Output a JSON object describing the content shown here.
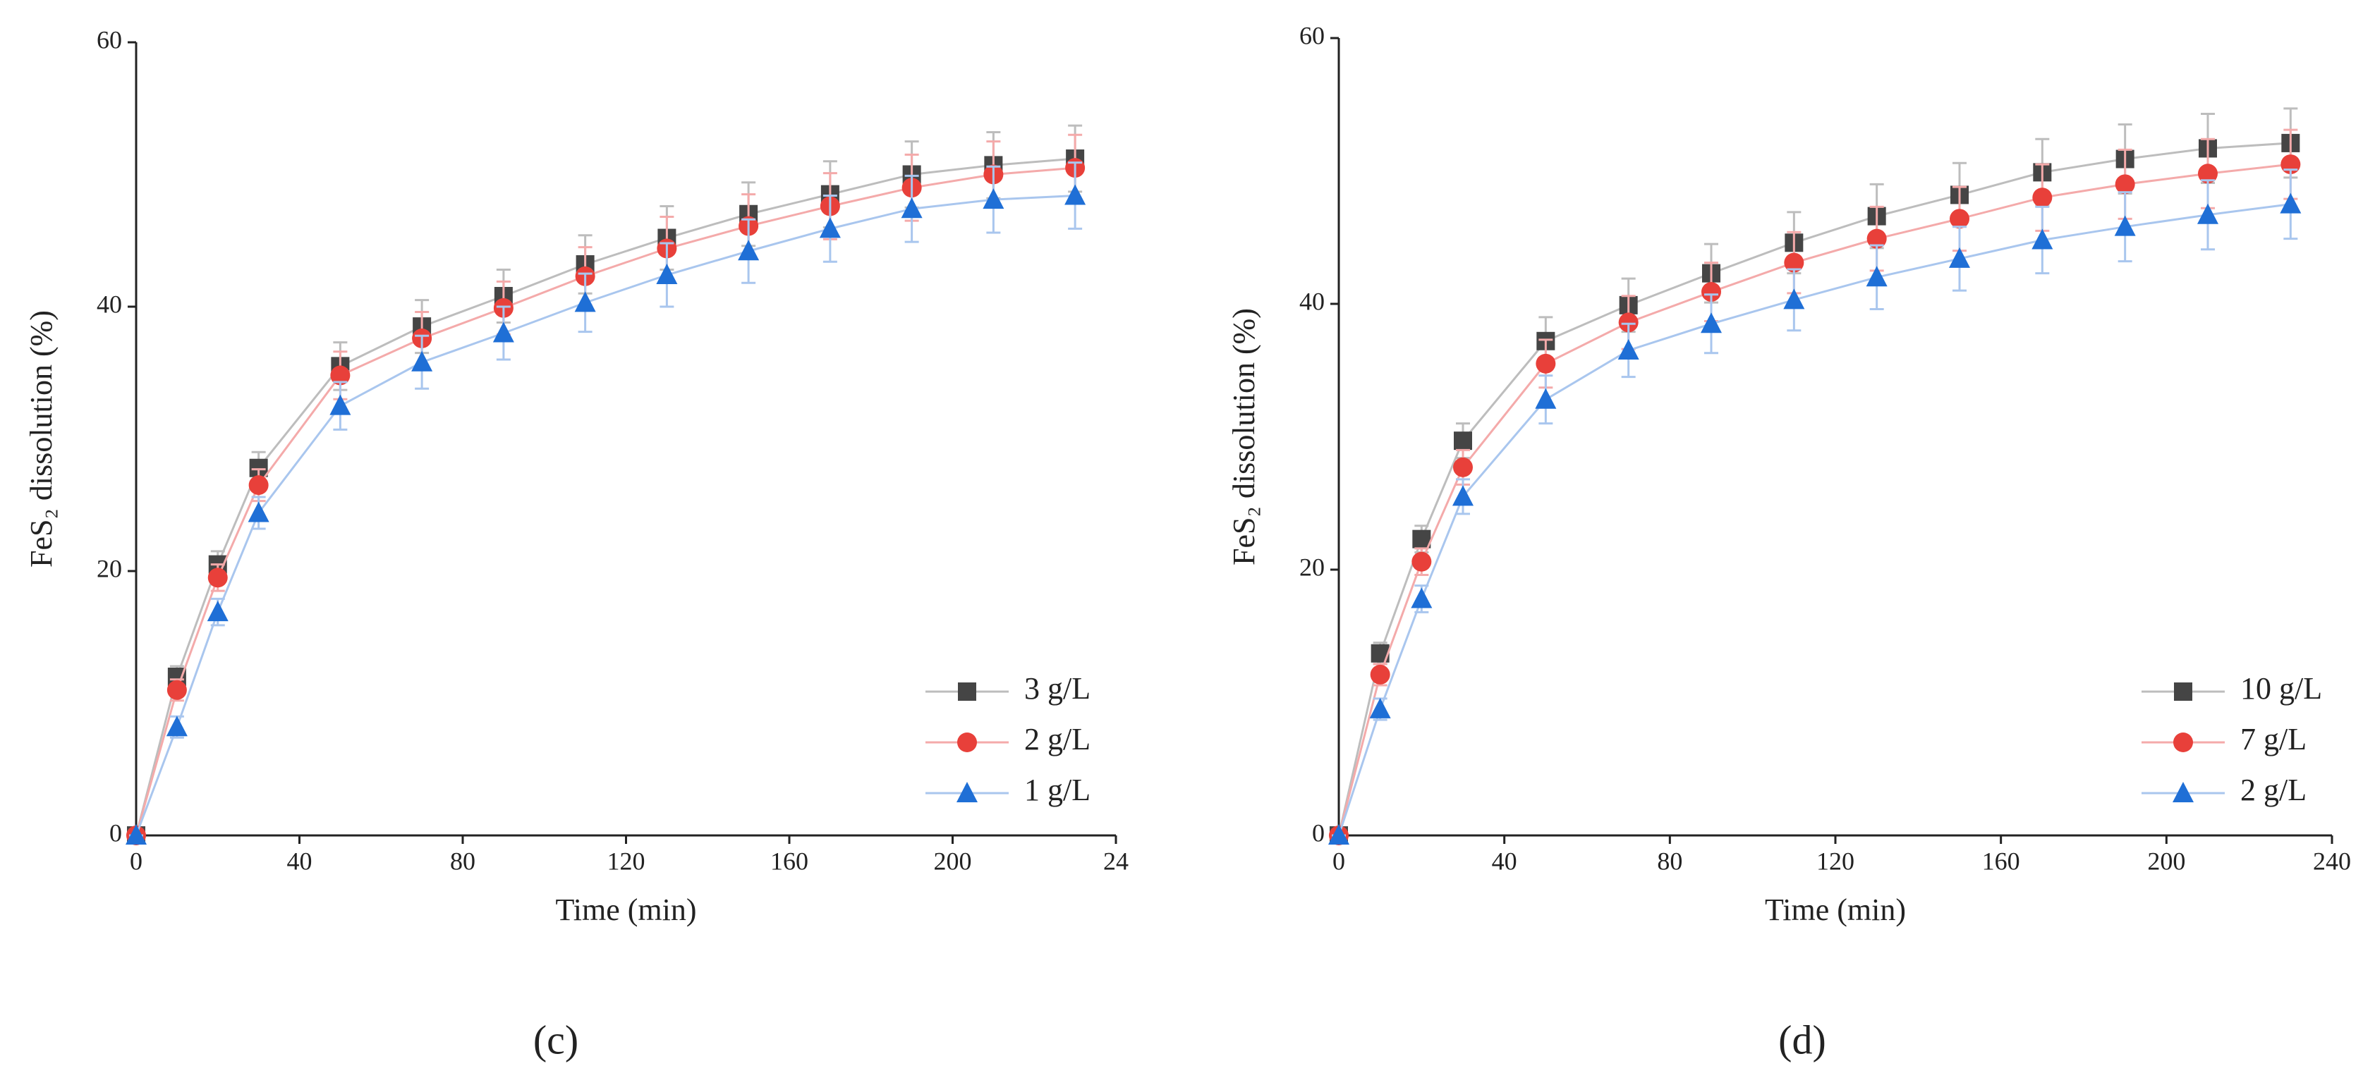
{
  "chart_data": [
    {
      "type": "line",
      "caption": "(c)",
      "xlabel": "Time (min)",
      "ylabel": "FeS₂ dissolution (%)",
      "xlim": [
        0,
        240
      ],
      "xticks": [
        0,
        40,
        80,
        120,
        160,
        200,
        {
          "value": 240,
          "label": "24"
        }
      ],
      "ylim": [
        0,
        60
      ],
      "yticks": [
        0,
        20,
        40,
        60
      ],
      "legend": "lower right",
      "x": [
        0,
        10,
        20,
        30,
        50,
        70,
        90,
        110,
        130,
        150,
        170,
        190,
        210,
        230
      ],
      "series": [
        {
          "name": "3 g/L",
          "marker": "square",
          "color": "#454545",
          "line_color": "#bdbdbd",
          "values": [
            0,
            12,
            20.5,
            27.8,
            35.5,
            38.5,
            40.8,
            43.2,
            45.2,
            47,
            48.5,
            50,
            50.7,
            51.2
          ],
          "errors": [
            0,
            0.8,
            1,
            1.2,
            1.8,
            2,
            2,
            2.2,
            2.4,
            2.4,
            2.5,
            2.5,
            2.5,
            2.5
          ]
        },
        {
          "name": "2 g/L",
          "marker": "circle",
          "color": "#e8403a",
          "line_color": "#f4aaaa",
          "values": [
            0,
            11,
            19.5,
            26.5,
            34.8,
            37.6,
            39.9,
            42.3,
            44.4,
            46.1,
            47.6,
            49,
            50,
            50.5
          ],
          "errors": [
            0,
            0.8,
            1,
            1.2,
            1.8,
            2,
            2,
            2.2,
            2.4,
            2.4,
            2.5,
            2.5,
            2.5,
            2.5
          ]
        },
        {
          "name": "1 g/L",
          "marker": "triangle",
          "color": "#1f6fd6",
          "line_color": "#a9c6ee",
          "values": [
            0,
            8.2,
            16.9,
            24.4,
            32.5,
            35.8,
            38,
            40.3,
            42.4,
            44.2,
            45.9,
            47.4,
            48.1,
            48.4
          ],
          "errors": [
            0,
            0.8,
            1,
            1.2,
            1.8,
            2,
            2,
            2.2,
            2.4,
            2.4,
            2.5,
            2.5,
            2.5,
            2.5
          ]
        }
      ]
    },
    {
      "type": "line",
      "caption": "(d)",
      "xlabel": "Time (min)",
      "ylabel": "FeS₂ dissolution (%)",
      "xlim": [
        0,
        240
      ],
      "xticks": [
        0,
        40,
        80,
        120,
        160,
        200,
        240
      ],
      "ylim": [
        0,
        60
      ],
      "yticks": [
        0,
        20,
        40,
        60
      ],
      "legend": "lower right",
      "x": [
        0,
        10,
        20,
        30,
        50,
        70,
        90,
        110,
        130,
        150,
        170,
        190,
        210,
        230
      ],
      "series": [
        {
          "name": "10 g/L",
          "marker": "square",
          "color": "#454545",
          "line_color": "#bdbdbd",
          "values": [
            0,
            13.7,
            22.3,
            29.7,
            37.2,
            39.9,
            42.3,
            44.6,
            46.6,
            48.2,
            49.9,
            50.9,
            51.7,
            52.1
          ],
          "errors": [
            0,
            0.8,
            1,
            1.3,
            1.8,
            2,
            2.2,
            2.3,
            2.4,
            2.4,
            2.5,
            2.6,
            2.6,
            2.6
          ]
        },
        {
          "name": "7 g/L",
          "marker": "circle",
          "color": "#e8403a",
          "line_color": "#f4aaaa",
          "values": [
            0,
            12.1,
            20.6,
            27.7,
            35.5,
            38.6,
            40.9,
            43.1,
            44.9,
            46.4,
            48,
            49,
            49.8,
            50.5
          ],
          "errors": [
            0,
            0.8,
            1,
            1.3,
            1.8,
            2,
            2.2,
            2.3,
            2.4,
            2.4,
            2.5,
            2.6,
            2.6,
            2.6
          ]
        },
        {
          "name": "2 g/L",
          "marker": "triangle",
          "color": "#1f6fd6",
          "line_color": "#a9c6ee",
          "values": [
            0,
            9.5,
            17.8,
            25.5,
            32.8,
            36.5,
            38.5,
            40.3,
            42,
            43.4,
            44.8,
            45.8,
            46.7,
            47.5
          ],
          "errors": [
            0,
            0.8,
            1,
            1.3,
            1.8,
            2,
            2.2,
            2.3,
            2.4,
            2.4,
            2.5,
            2.6,
            2.6,
            2.6
          ]
        }
      ]
    }
  ]
}
